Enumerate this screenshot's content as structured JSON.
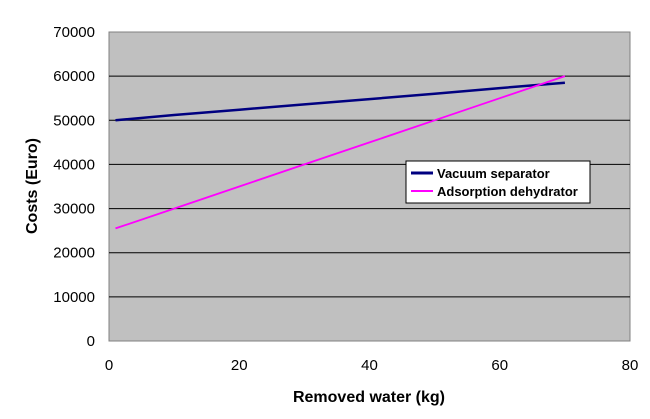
{
  "chart_data": {
    "type": "line",
    "title": "",
    "xlabel": "Removed water (kg)",
    "ylabel": "Costs (Euro)",
    "xlim": [
      0,
      80
    ],
    "ylim": [
      0,
      70000
    ],
    "x_ticks": [
      0,
      20,
      40,
      60,
      80
    ],
    "y_ticks": [
      0,
      10000,
      20000,
      30000,
      40000,
      50000,
      60000,
      70000
    ],
    "grid": "horizontal",
    "plot_background": "#c0c0c0",
    "legend_position": "right-center",
    "series": [
      {
        "name": "Vacuum separator",
        "color": "#000080",
        "x": [
          1,
          10,
          20,
          30,
          40,
          50,
          60,
          70
        ],
        "y": [
          50000,
          51200,
          52400,
          53600,
          54800,
          56000,
          57300,
          58500
        ]
      },
      {
        "name": "Adsorption dehydrator",
        "color": "#ff00ff",
        "x": [
          1,
          10,
          20,
          30,
          40,
          50,
          60,
          70
        ],
        "y": [
          25500,
          30000,
          35000,
          40000,
          45000,
          50000,
          55000,
          60000
        ]
      }
    ]
  }
}
